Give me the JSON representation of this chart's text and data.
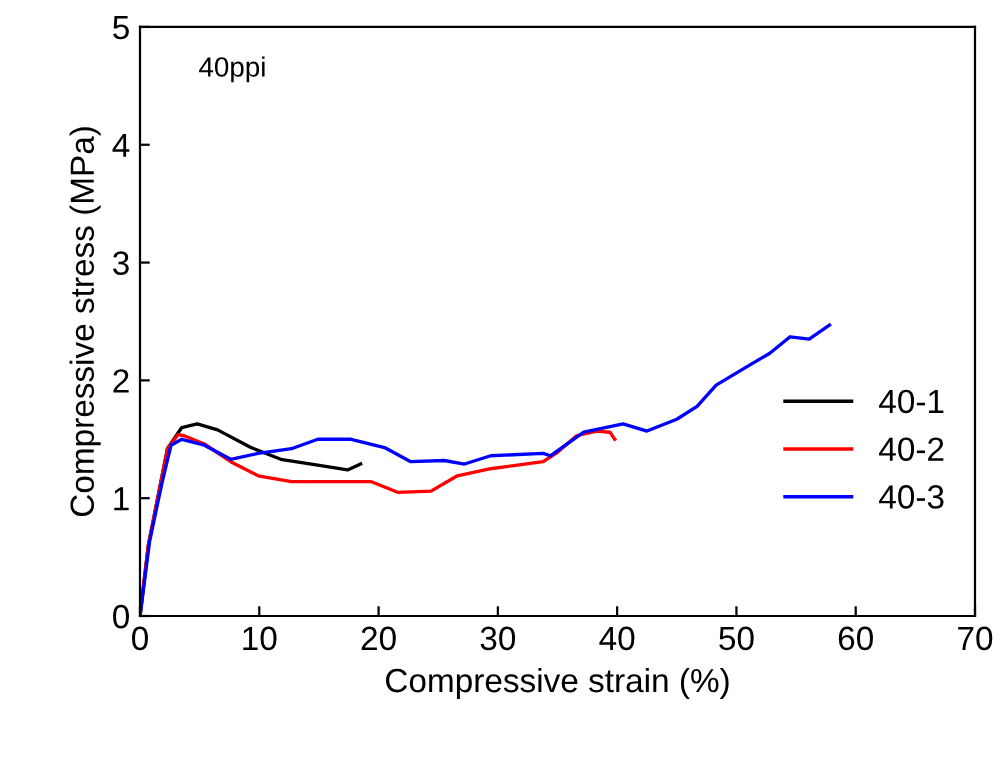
{
  "chart_data": {
    "type": "line",
    "xlabel": "Compressive strain (%)",
    "ylabel": "Compressive stress (MPa)",
    "annotations": [
      "40ppi"
    ],
    "xlim": [
      0,
      70
    ],
    "ylim": [
      0,
      5
    ],
    "xticks": [
      0,
      10,
      20,
      30,
      40,
      50,
      60,
      70
    ],
    "yticks": [
      0,
      1,
      2,
      3,
      4,
      5
    ],
    "grid": false,
    "legend": "bottom right",
    "marker": "none",
    "line_style": "solid",
    "series": [
      {
        "name": "40-1",
        "color": "#000000",
        "x": [
          0,
          0.7,
          2.3,
          3.5,
          4.8,
          6.5,
          9.3,
          11.8,
          14.9,
          17.4,
          18.5
        ],
        "values": [
          0,
          0.6,
          1.42,
          1.6,
          1.63,
          1.58,
          1.43,
          1.33,
          1.28,
          1.24,
          1.29
        ]
      },
      {
        "name": "40-2",
        "color": "#ff0000",
        "x": [
          0,
          0.7,
          2.3,
          3.2,
          3.7,
          5.4,
          7.6,
          9.9,
          12.7,
          19.4,
          21.6,
          24.4,
          26.6,
          29.4,
          33.8,
          35,
          36.6,
          38.3,
          39.4,
          39.8
        ],
        "values": [
          0,
          0.6,
          1.42,
          1.54,
          1.53,
          1.46,
          1.31,
          1.19,
          1.14,
          1.14,
          1.05,
          1.06,
          1.19,
          1.25,
          1.31,
          1.39,
          1.53,
          1.57,
          1.56,
          1.5
        ]
      },
      {
        "name": "40-3",
        "color": "#0000ff",
        "x": [
          0,
          0.8,
          1.8,
          2.6,
          3.5,
          5.4,
          7.6,
          9.9,
          12.7,
          14.9,
          17.7,
          20.5,
          22.7,
          25.5,
          27.2,
          29.4,
          33.8,
          34.4,
          37.2,
          40.5,
          42.5,
          45,
          46.7,
          48.3,
          51.1,
          52.8,
          54.5,
          56.1,
          57.8
        ],
        "values": [
          0,
          0.63,
          1.11,
          1.45,
          1.5,
          1.45,
          1.33,
          1.38,
          1.42,
          1.5,
          1.5,
          1.43,
          1.31,
          1.32,
          1.29,
          1.36,
          1.38,
          1.36,
          1.56,
          1.63,
          1.57,
          1.67,
          1.78,
          1.96,
          2.13,
          2.23,
          2.37,
          2.35,
          2.47
        ]
      }
    ]
  }
}
